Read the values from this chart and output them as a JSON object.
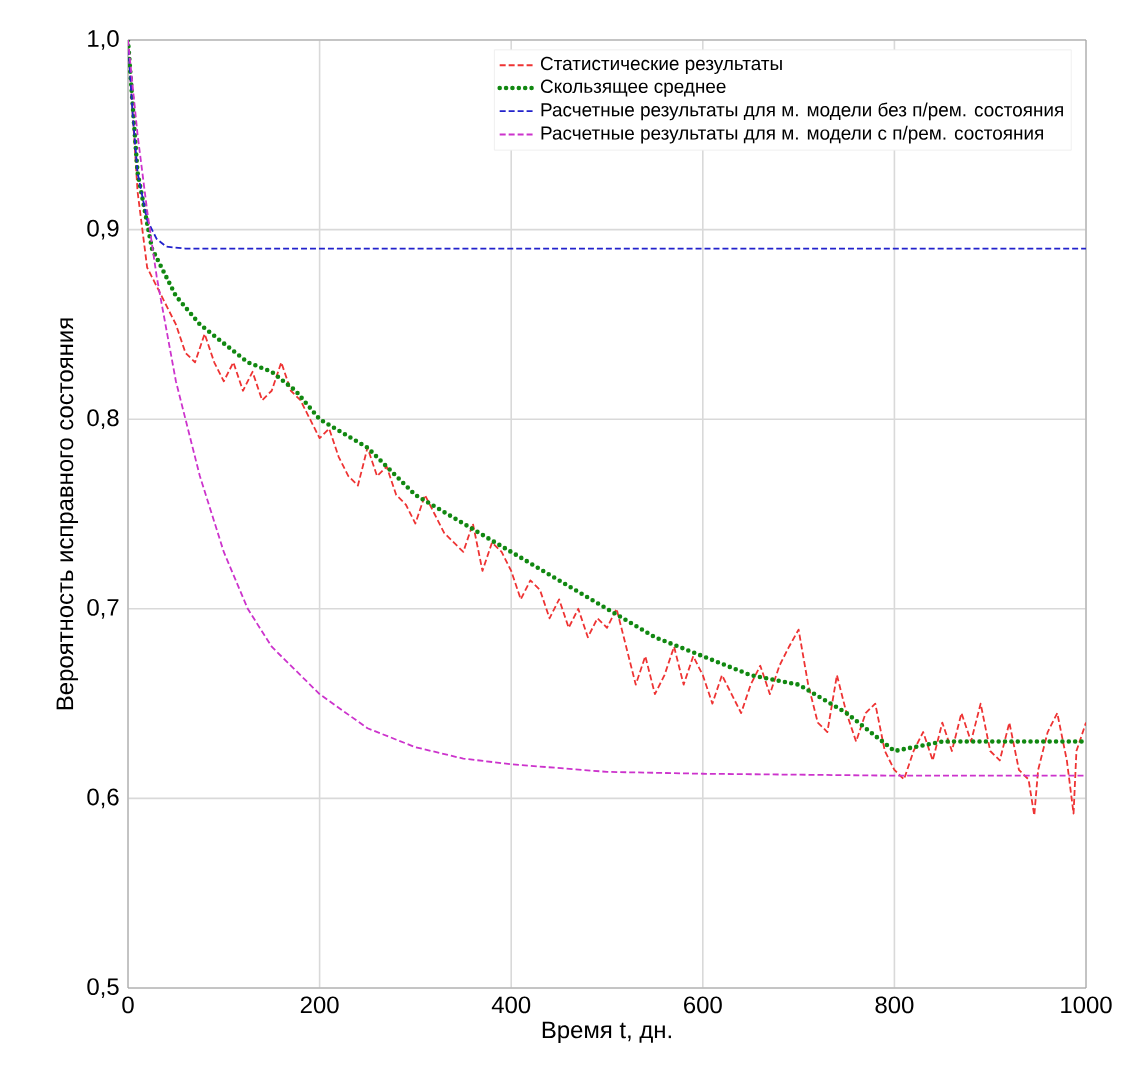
{
  "chart_data": {
    "type": "line",
    "xlabel": "Время t, дн.",
    "ylabel": "Вероятность исправного состояния",
    "xlim": [
      0,
      1000
    ],
    "ylim": [
      0.5,
      1.0
    ],
    "xticks": [
      0,
      200,
      400,
      600,
      800,
      1000
    ],
    "yticks": [
      {
        "value": 0.5,
        "label": "0,5"
      },
      {
        "value": 0.6,
        "label": "0,6"
      },
      {
        "value": 0.7,
        "label": "0,7"
      },
      {
        "value": 0.8,
        "label": "0,8"
      },
      {
        "value": 0.9,
        "label": "0,9"
      },
      {
        "value": 1.0,
        "label": "1,0"
      }
    ],
    "grid": true,
    "legend": "top right",
    "series": [
      {
        "name": "Статистические результаты",
        "color": "#ee3333",
        "line_style": "dashed",
        "x": [
          0,
          10,
          20,
          30,
          40,
          50,
          60,
          70,
          80,
          90,
          100,
          110,
          120,
          130,
          140,
          150,
          160,
          170,
          180,
          190,
          200,
          210,
          220,
          230,
          240,
          250,
          260,
          270,
          280,
          290,
          300,
          310,
          320,
          330,
          340,
          350,
          360,
          370,
          380,
          390,
          400,
          410,
          420,
          430,
          440,
          450,
          460,
          470,
          480,
          490,
          500,
          510,
          520,
          530,
          540,
          550,
          560,
          570,
          580,
          590,
          600,
          610,
          620,
          630,
          640,
          650,
          660,
          670,
          680,
          690,
          700,
          710,
          720,
          730,
          740,
          750,
          760,
          770,
          780,
          790,
          800,
          810,
          820,
          830,
          840,
          850,
          860,
          870,
          880,
          890,
          900,
          910,
          920,
          930,
          940,
          946,
          950,
          960,
          970,
          980,
          987,
          990,
          1000
        ],
        "values": [
          1.0,
          0.92,
          0.88,
          0.87,
          0.86,
          0.85,
          0.835,
          0.83,
          0.845,
          0.83,
          0.82,
          0.83,
          0.815,
          0.825,
          0.81,
          0.815,
          0.83,
          0.815,
          0.81,
          0.8,
          0.79,
          0.795,
          0.78,
          0.77,
          0.765,
          0.785,
          0.77,
          0.775,
          0.76,
          0.755,
          0.745,
          0.76,
          0.75,
          0.74,
          0.735,
          0.73,
          0.745,
          0.72,
          0.735,
          0.73,
          0.72,
          0.705,
          0.715,
          0.71,
          0.695,
          0.705,
          0.69,
          0.7,
          0.685,
          0.695,
          0.69,
          0.7,
          0.68,
          0.66,
          0.675,
          0.655,
          0.665,
          0.68,
          0.66,
          0.675,
          0.665,
          0.65,
          0.665,
          0.655,
          0.645,
          0.66,
          0.67,
          0.655,
          0.67,
          0.68,
          0.689,
          0.66,
          0.64,
          0.635,
          0.665,
          0.645,
          0.63,
          0.645,
          0.65,
          0.625,
          0.615,
          0.61,
          0.625,
          0.635,
          0.62,
          0.64,
          0.625,
          0.645,
          0.63,
          0.65,
          0.625,
          0.62,
          0.64,
          0.615,
          0.61,
          0.591,
          0.615,
          0.635,
          0.645,
          0.62,
          0.592,
          0.625,
          0.64
        ]
      },
      {
        "name": "Скользящее среднее",
        "color": "#118811",
        "line_style": "dotted",
        "x": [
          0,
          10,
          25,
          50,
          75,
          100,
          125,
          150,
          175,
          200,
          250,
          300,
          350,
          400,
          450,
          500,
          550,
          600,
          650,
          700,
          750,
          800,
          850,
          900,
          950,
          1000
        ],
        "values": [
          1.0,
          0.93,
          0.89,
          0.865,
          0.85,
          0.84,
          0.83,
          0.825,
          0.815,
          0.8,
          0.785,
          0.76,
          0.745,
          0.73,
          0.715,
          0.7,
          0.685,
          0.675,
          0.665,
          0.66,
          0.645,
          0.625,
          0.63,
          0.63,
          0.63,
          0.63
        ]
      },
      {
        "name": "Расчетные результаты для м. модели без п/рем. состояния",
        "color": "#2222cc",
        "line_style": "dashed",
        "x": [
          0,
          5,
          10,
          20,
          30,
          40,
          60,
          1000
        ],
        "values": [
          1.0,
          0.96,
          0.93,
          0.905,
          0.895,
          0.891,
          0.89,
          0.89
        ]
      },
      {
        "name": "Расчетные результаты для м. модели с п/рем. состояния",
        "color": "#cc33cc",
        "line_style": "dashed",
        "x": [
          0,
          10,
          20,
          30,
          50,
          75,
          100,
          125,
          150,
          200,
          250,
          300,
          350,
          400,
          500,
          600,
          800,
          1000
        ],
        "values": [
          1.0,
          0.95,
          0.91,
          0.875,
          0.82,
          0.77,
          0.73,
          0.7,
          0.68,
          0.655,
          0.637,
          0.627,
          0.621,
          0.618,
          0.614,
          0.613,
          0.612,
          0.612
        ]
      }
    ]
  }
}
